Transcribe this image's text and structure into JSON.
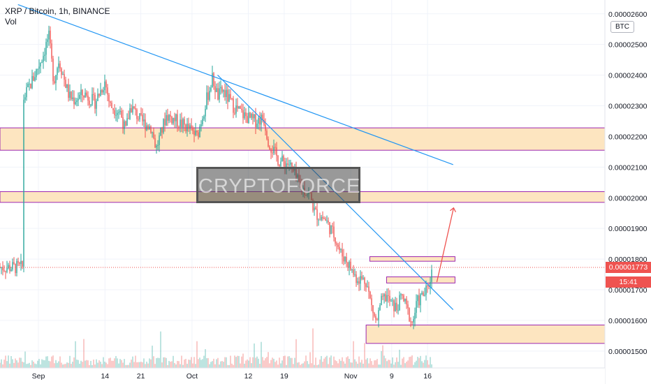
{
  "header": {
    "title": "XRP / Bitcoin, 1h, BINANCE",
    "volume_label": "Vol",
    "currency": "BTC"
  },
  "watermark": "CRYPTOFORCE",
  "price_tag": {
    "value": "0.00001773",
    "countdown": "15:41",
    "color": "#ef5350"
  },
  "colors": {
    "candle_up": "#26a69a",
    "candle_down": "#ef5350",
    "trendline": "#2196f3",
    "zone_fill": "#fde5c0",
    "zone_border": "#9c27b0",
    "arrow": "#ef5350"
  },
  "chart_data": {
    "type": "candlestick",
    "symbol": "XRP / Bitcoin",
    "interval": "1h",
    "exchange": "BINANCE",
    "ylim": [
      1.445e-05,
      2.645e-05
    ],
    "y_ticks": [
      "0.00002600",
      "0.00002500",
      "0.00002400",
      "0.00002300",
      "0.00002200",
      "0.00002100",
      "0.00002000",
      "0.00001900",
      "0.00001800",
      "0.00001700",
      "0.00001600",
      "0.00001500"
    ],
    "x_ticks": [
      "Sep",
      "14",
      "21",
      "Oct",
      "12",
      "19",
      "Nov",
      "9",
      "16"
    ],
    "last_price": 1.773e-05,
    "price_path": [
      [
        "Aug 29",
        2.32e-05
      ],
      [
        "Aug 31",
        2.39e-05
      ],
      [
        "Sep 2",
        2.47e-05
      ],
      [
        "Sep 3",
        2.53e-05
      ],
      [
        "Sep 4",
        2.38e-05
      ],
      [
        "Sep 5",
        2.45e-05
      ],
      [
        "Sep 7",
        2.33e-05
      ],
      [
        "Sep 8",
        2.32e-05
      ],
      [
        "Sep 10",
        2.34e-05
      ],
      [
        "Sep 12",
        2.31e-05
      ],
      [
        "Sep 14",
        2.38e-05
      ],
      [
        "Sep 15",
        2.3e-05
      ],
      [
        "Sep 17",
        2.28e-05
      ],
      [
        "Sep 18",
        2.215e-05
      ],
      [
        "Sep 19",
        2.3e-05
      ],
      [
        "Sep 21",
        2.25e-05
      ],
      [
        "Sep 23",
        2.23e-05
      ],
      [
        "Sep 24",
        2.16e-05
      ],
      [
        "Sep 26",
        2.27e-05
      ],
      [
        "Sep 28",
        2.25e-05
      ],
      [
        "Sep 30",
        2.23e-05
      ],
      [
        "Oct 2",
        2.2e-05
      ],
      [
        "Oct 4",
        2.33e-05
      ],
      [
        "Oct 5",
        2.39e-05
      ],
      [
        "Oct 6",
        2.33e-05
      ],
      [
        "Oct 7",
        2.35e-05
      ],
      [
        "Oct 9",
        2.3e-05
      ],
      [
        "Oct 11",
        2.27e-05
      ],
      [
        "Oct 13",
        2.25e-05
      ],
      [
        "Oct 15",
        2.26e-05
      ],
      [
        "Oct 16",
        2.18e-05
      ],
      [
        "Oct 18",
        2.12e-05
      ],
      [
        "Oct 20",
        2.11e-05
      ],
      [
        "Oct 22",
        2.04e-05
      ],
      [
        "Oct 24",
        2.01e-05
      ],
      [
        "Oct 25",
        1.95e-05
      ],
      [
        "Oct 27",
        1.93e-05
      ],
      [
        "Oct 29",
        1.87e-05
      ],
      [
        "Oct 30",
        1.82e-05
      ],
      [
        "Oct 31",
        1.8e-05
      ],
      [
        "Nov 2",
        1.74e-05
      ],
      [
        "Nov 4",
        1.73e-05
      ],
      [
        "Nov 5",
        1.65e-05
      ],
      [
        "Nov 6",
        1.59e-05
      ],
      [
        "Nov 7",
        1.66e-05
      ],
      [
        "Nov 8",
        1.68e-05
      ],
      [
        "Nov 9",
        1.65e-05
      ],
      [
        "Nov 10",
        1.64e-05
      ],
      [
        "Nov 11",
        1.68e-05
      ],
      [
        "Nov 13",
        1.59e-05
      ],
      [
        "Nov 14",
        1.66e-05
      ],
      [
        "Nov 15",
        1.68e-05
      ],
      [
        "Nov 16",
        1.7e-05
      ],
      [
        "Nov 17",
        1.773e-05
      ]
    ],
    "zones": [
      {
        "from": 2.155e-05,
        "to": 2.228e-05
      },
      {
        "from": 1.985e-05,
        "to": 2.02e-05
      },
      {
        "from": 1.793e-05,
        "to": 1.808e-05
      },
      {
        "from": 1.722e-05,
        "to": 1.742e-05
      },
      {
        "from": 1.525e-05,
        "to": 1.585e-05
      }
    ],
    "trendlines": [
      {
        "from": [
          "Aug 28",
          2.63e-05
        ],
        "to": [
          "Nov 21",
          2.108e-05
        ]
      },
      {
        "from": [
          "Oct 6",
          2.4e-05
        ],
        "to": [
          "Nov 21",
          1.635e-05
        ]
      }
    ],
    "projection": {
      "from": [
        "Nov 17",
        1.725e-05
      ],
      "to": [
        "Nov 20",
        1.967e-05
      ]
    },
    "legend_position": "top-left"
  }
}
